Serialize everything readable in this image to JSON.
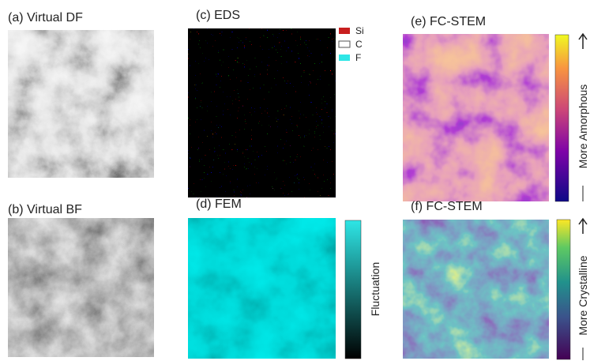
{
  "panels": [
    {
      "label": "(a) Virtual DF"
    },
    {
      "label": "(b) Virtual BF"
    },
    {
      "label": "(c) EDS",
      "legend": [
        "Si",
        "C",
        "F"
      ]
    },
    {
      "label": "(d) FEM",
      "colorbar_label": "Fluctuation"
    },
    {
      "label": "(e) FC-STEM",
      "colorbar_label": "More Amorphous"
    },
    {
      "label": "(f) FC-STEM",
      "colorbar_label": "More Crystalline"
    }
  ]
}
